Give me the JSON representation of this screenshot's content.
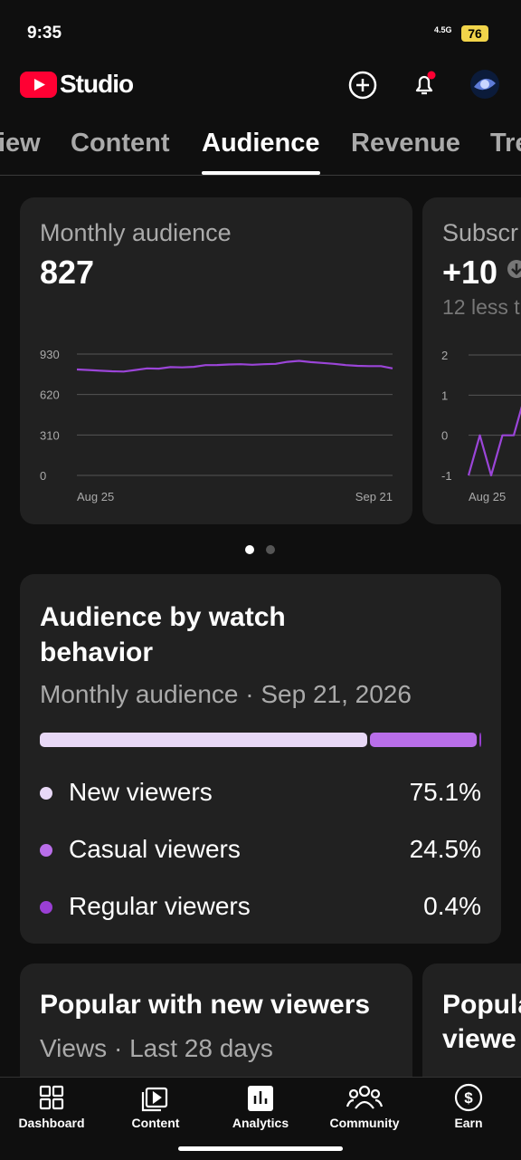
{
  "status_bar": {
    "time": "9:35",
    "network": "4.5G",
    "battery": "76"
  },
  "header": {
    "brand": "Studio"
  },
  "tabs": {
    "items": [
      "iew",
      "Content",
      "Audience",
      "Revenue",
      "Tre"
    ],
    "active": 2
  },
  "monthly_card": {
    "title": "Monthly audience",
    "value": "827",
    "chart": {
      "type": "line",
      "color": "#9b45d8",
      "ylim": [
        0,
        930
      ],
      "yticks": [
        0,
        310,
        620,
        930
      ],
      "x_labels": [
        "Aug 25",
        "Sep 21"
      ],
      "values": [
        812,
        808,
        802,
        798,
        796,
        808,
        820,
        818,
        830,
        828,
        832,
        845,
        846,
        850,
        852,
        848,
        852,
        855,
        870,
        878,
        868,
        862,
        855,
        845,
        840,
        838,
        838,
        820
      ]
    }
  },
  "subscribers_card": {
    "title": "Subscr",
    "value": "+10",
    "note": "12 less t",
    "chart": {
      "type": "line",
      "color": "#9b45d8",
      "ylim": [
        -1,
        2
      ],
      "yticks": [
        -1,
        0,
        1,
        2
      ],
      "x_labels": [
        "Aug 25"
      ],
      "values": [
        -1,
        0,
        -1,
        0,
        0,
        1
      ]
    }
  },
  "watch_card": {
    "title": "Audience by watch behavior",
    "subtitle": "Monthly audience · Sep 21, 2026",
    "segments": [
      {
        "name": "New viewers",
        "value": 75.1,
        "value_label": "75.1%",
        "color": "#e8d8f6"
      },
      {
        "name": "Casual viewers",
        "value": 24.5,
        "value_label": "24.5%",
        "color": "#b96ee9"
      },
      {
        "name": "Regular viewers",
        "value": 0.4,
        "value_label": "0.4%",
        "color": "#9a3fd4"
      }
    ]
  },
  "popular_card": {
    "title": "Popular with new viewers",
    "subtitle": "Views · Last 28 days"
  },
  "popular_card_2": {
    "title_lines": [
      "Popula",
      "viewe"
    ]
  },
  "bottom_nav": [
    "Dashboard",
    "Content",
    "Analytics",
    "Community",
    "Earn"
  ]
}
